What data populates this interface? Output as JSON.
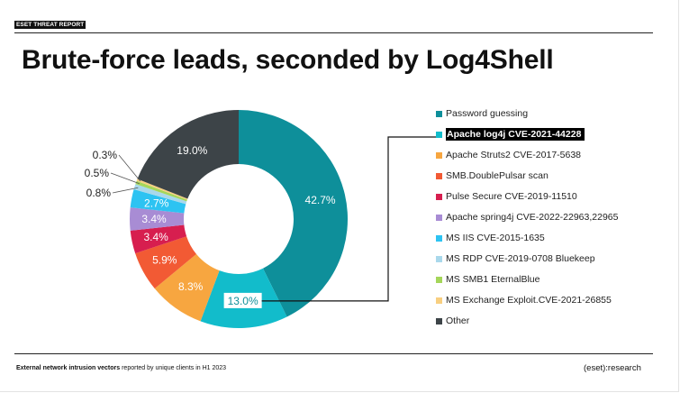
{
  "header": {
    "report_tag": "ESET THREAT REPORT",
    "title": "Brute-force leads, seconded by Log4Shell"
  },
  "footer": {
    "caption_bold": "External network intrusion vectors",
    "caption_rest": " reported by unique clients in H1 2023",
    "brand": "(eset):research"
  },
  "chart_data": {
    "type": "pie",
    "style": "donut",
    "highlighted_category": "Apache log4j CVE-2021-44228",
    "categories": [
      "Password guessing",
      "Apache log4j CVE-2021-44228",
      "Apache Struts2 CVE-2017-5638",
      "SMB.DoublePulsar scan",
      "Pulse Secure CVE-2019-11510",
      "Apache spring4j CVE-2022-22963,22965",
      "MS IIS CVE-2015-1635",
      "MS RDP CVE-2019-0708 Bluekeep",
      "MS SMB1 EternalBlue",
      "MS Exchange Exploit.CVE-2021-26855",
      "Other"
    ],
    "values": [
      42.7,
      13.0,
      8.3,
      5.9,
      3.4,
      3.4,
      2.7,
      0.8,
      0.5,
      0.3,
      19.0
    ],
    "labels": [
      "42.7%",
      "13.0%",
      "8.3%",
      "5.9%",
      "3.4%",
      "3.4%",
      "2.7%",
      "0.8%",
      "0.5%",
      "0.3%",
      "19.0%"
    ],
    "colors": [
      "#0E8F9A",
      "#12BCCB",
      "#F7A640",
      "#F25A34",
      "#D71E4F",
      "#A88CD4",
      "#2DC3F2",
      "#A9D8EB",
      "#A5D65A",
      "#F8CF80",
      "#3D4448"
    ],
    "legend_position": "right"
  }
}
